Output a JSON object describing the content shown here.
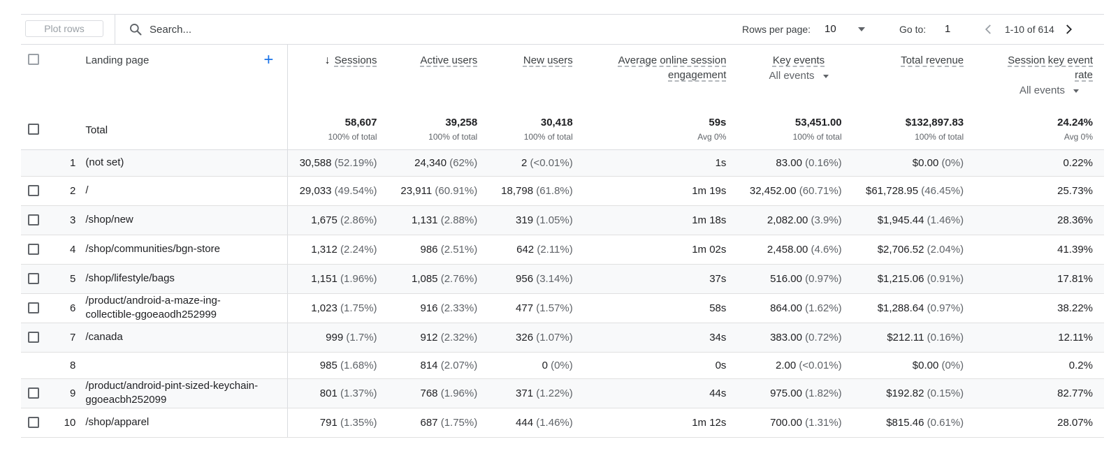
{
  "toolbar": {
    "plot_rows": "Plot rows",
    "search_placeholder": "Search...",
    "rows_per_page_label": "Rows per page:",
    "rows_per_page_value": "10",
    "goto_label": "Go to:",
    "goto_value": "1",
    "page_range": "1-10 of 614"
  },
  "header": {
    "dimension": "Landing page",
    "columns": [
      {
        "label": "Sessions"
      },
      {
        "label": "Active users"
      },
      {
        "label": "New users"
      },
      {
        "label": "Average online session engagement"
      },
      {
        "label": "Key events",
        "filter": "All events"
      },
      {
        "label": "Total revenue"
      },
      {
        "label": "Session key event rate",
        "filter": "All events"
      }
    ]
  },
  "totals": {
    "label": "Total",
    "values": [
      {
        "v": "58,607",
        "sub": "100% of total"
      },
      {
        "v": "39,258",
        "sub": "100% of total"
      },
      {
        "v": "30,418",
        "sub": "100% of total"
      },
      {
        "v": "59s",
        "sub": "Avg 0%"
      },
      {
        "v": "53,451.00",
        "sub": "100% of total"
      },
      {
        "v": "$132,897.83",
        "sub": "100% of total"
      },
      {
        "v": "24.24%",
        "sub": "Avg 0%"
      }
    ]
  },
  "rows": [
    {
      "idx": "1",
      "page": "(not set)",
      "checkbox": false,
      "cells": [
        [
          "30,588",
          "(52.19%)"
        ],
        [
          "24,340",
          "(62%)"
        ],
        [
          "2",
          "(<0.01%)"
        ],
        [
          "1s",
          ""
        ],
        [
          "83.00",
          "(0.16%)"
        ],
        [
          "$0.00",
          "(0%)"
        ],
        [
          "0.22%",
          ""
        ]
      ]
    },
    {
      "idx": "2",
      "page": "/",
      "checkbox": true,
      "cells": [
        [
          "29,033",
          "(49.54%)"
        ],
        [
          "23,911",
          "(60.91%)"
        ],
        [
          "18,798",
          "(61.8%)"
        ],
        [
          "1m 19s",
          ""
        ],
        [
          "32,452.00",
          "(60.71%)"
        ],
        [
          "$61,728.95",
          "(46.45%)"
        ],
        [
          "25.73%",
          ""
        ]
      ]
    },
    {
      "idx": "3",
      "page": "/shop/new",
      "checkbox": true,
      "cells": [
        [
          "1,675",
          "(2.86%)"
        ],
        [
          "1,131",
          "(2.88%)"
        ],
        [
          "319",
          "(1.05%)"
        ],
        [
          "1m 18s",
          ""
        ],
        [
          "2,082.00",
          "(3.9%)"
        ],
        [
          "$1,945.44",
          "(1.46%)"
        ],
        [
          "28.36%",
          ""
        ]
      ]
    },
    {
      "idx": "4",
      "page": "/shop/communities/bgn-store",
      "checkbox": true,
      "cells": [
        [
          "1,312",
          "(2.24%)"
        ],
        [
          "986",
          "(2.51%)"
        ],
        [
          "642",
          "(2.11%)"
        ],
        [
          "1m 02s",
          ""
        ],
        [
          "2,458.00",
          "(4.6%)"
        ],
        [
          "$2,706.52",
          "(2.04%)"
        ],
        [
          "41.39%",
          ""
        ]
      ]
    },
    {
      "idx": "5",
      "page": "/shop/lifestyle/bags",
      "checkbox": true,
      "cells": [
        [
          "1,151",
          "(1.96%)"
        ],
        [
          "1,085",
          "(2.76%)"
        ],
        [
          "956",
          "(3.14%)"
        ],
        [
          "37s",
          ""
        ],
        [
          "516.00",
          "(0.97%)"
        ],
        [
          "$1,215.06",
          "(0.91%)"
        ],
        [
          "17.81%",
          ""
        ]
      ]
    },
    {
      "idx": "6",
      "page": "/product/android-a-maze-ing-collectible-ggoeaodh252999",
      "checkbox": true,
      "cells": [
        [
          "1,023",
          "(1.75%)"
        ],
        [
          "916",
          "(2.33%)"
        ],
        [
          "477",
          "(1.57%)"
        ],
        [
          "58s",
          ""
        ],
        [
          "864.00",
          "(1.62%)"
        ],
        [
          "$1,288.64",
          "(0.97%)"
        ],
        [
          "38.22%",
          ""
        ]
      ]
    },
    {
      "idx": "7",
      "page": "/canada",
      "checkbox": true,
      "cells": [
        [
          "999",
          "(1.7%)"
        ],
        [
          "912",
          "(2.32%)"
        ],
        [
          "326",
          "(1.07%)"
        ],
        [
          "34s",
          ""
        ],
        [
          "383.00",
          "(0.72%)"
        ],
        [
          "$212.11",
          "(0.16%)"
        ],
        [
          "12.11%",
          ""
        ]
      ]
    },
    {
      "idx": "8",
      "page": "",
      "checkbox": false,
      "cells": [
        [
          "985",
          "(1.68%)"
        ],
        [
          "814",
          "(2.07%)"
        ],
        [
          "0",
          "(0%)"
        ],
        [
          "0s",
          ""
        ],
        [
          "2.00",
          "(<0.01%)"
        ],
        [
          "$0.00",
          "(0%)"
        ],
        [
          "0.2%",
          ""
        ]
      ]
    },
    {
      "idx": "9",
      "page": "/product/android-pint-sized-keychain-ggoeacbh252099",
      "checkbox": true,
      "cells": [
        [
          "801",
          "(1.37%)"
        ],
        [
          "768",
          "(1.96%)"
        ],
        [
          "371",
          "(1.22%)"
        ],
        [
          "44s",
          ""
        ],
        [
          "975.00",
          "(1.82%)"
        ],
        [
          "$192.82",
          "(0.15%)"
        ],
        [
          "82.77%",
          ""
        ]
      ]
    },
    {
      "idx": "10",
      "page": "/shop/apparel",
      "checkbox": true,
      "cells": [
        [
          "791",
          "(1.35%)"
        ],
        [
          "687",
          "(1.75%)"
        ],
        [
          "444",
          "(1.46%)"
        ],
        [
          "1m 12s",
          ""
        ],
        [
          "700.00",
          "(1.31%)"
        ],
        [
          "$815.46",
          "(0.61%)"
        ],
        [
          "28.07%",
          ""
        ]
      ]
    }
  ]
}
